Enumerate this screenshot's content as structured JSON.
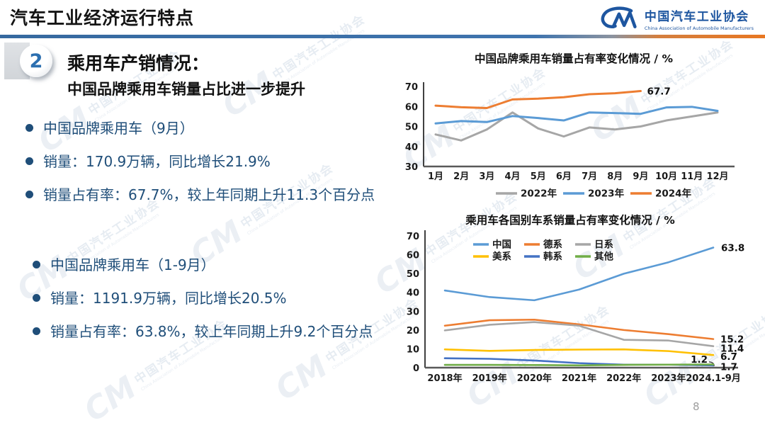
{
  "slide": {
    "title": "汽车工业经济运行特点",
    "page_number": "8"
  },
  "logo": {
    "mark": "CM",
    "name_cn": "中国汽车工业协会",
    "name_en": "China Association of Automobile Manufacturers"
  },
  "watermark": {
    "mark": "CM",
    "text": "中国汽车工业协会"
  },
  "section": {
    "number": "2",
    "heading": "乘用车产销情况：",
    "subheading": "中国品牌乘用车销量占比进一步提升"
  },
  "bullets": {
    "group1": [
      "中国品牌乘用车（9月）",
      "销量：170.9万辆，同比增长21.9%",
      "销量占有率：67.7%，较上年同期上升11.3个百分点"
    ],
    "group2": [
      "中国品牌乘用车（1-9月）",
      "销量：1191.9万辆，同比增长20.5%",
      "销量占有率：63.8%，较上年同期上升9.2个百分点"
    ]
  },
  "colors": {
    "accent_blue": "#3f74ae",
    "accent_orange": "#e87722",
    "text_navy": "#1f4e79",
    "logo_blue": "#1e56a0"
  },
  "chart_data": [
    {
      "type": "line",
      "title": "中国品牌乘用车销量占有率变化情况 / %",
      "categories": [
        "1月",
        "2月",
        "3月",
        "4月",
        "5月",
        "6月",
        "7月",
        "8月",
        "9月",
        "10月",
        "11月",
        "12月"
      ],
      "series": [
        {
          "name": "2022年",
          "color": "#a6a6a6",
          "values": [
            46,
            43,
            48.5,
            57,
            49,
            45,
            49.5,
            48.5,
            50,
            53,
            55,
            57
          ]
        },
        {
          "name": "2023年",
          "color": "#5b9bd5",
          "values": [
            51.5,
            52.7,
            52.2,
            55.2,
            54.2,
            53,
            57,
            56.7,
            56.3,
            59.5,
            59.8,
            57.8
          ]
        },
        {
          "name": "2024年",
          "color": "#ed7d31",
          "values": [
            60.4,
            59.6,
            59.2,
            63.5,
            63.9,
            64.6,
            66.1,
            66.6,
            67.7
          ],
          "end_label": "67.7"
        }
      ],
      "ylim": [
        30,
        70
      ],
      "yticks": [
        30,
        40,
        50,
        60,
        70
      ],
      "grid": "off",
      "legend_position": "bottom"
    },
    {
      "type": "line",
      "title": "乘用车各国别车系销量占有率变化情况 / %",
      "categories": [
        "2018年",
        "2019年",
        "2020年",
        "2021年",
        "2022年",
        "2023年",
        "2024.1-9月"
      ],
      "series": [
        {
          "name": "中国",
          "color": "#5b9bd5",
          "values": [
            41,
            37.5,
            35.8,
            41.5,
            49.9,
            56,
            63.8
          ],
          "end_label": "63.8"
        },
        {
          "name": "德系",
          "color": "#ed7d31",
          "values": [
            22.3,
            25.2,
            25.5,
            23,
            20,
            17.8,
            15.2
          ],
          "end_label": "15.2"
        },
        {
          "name": "日系",
          "color": "#a6a6a6",
          "values": [
            19.8,
            22.8,
            24.2,
            22.3,
            14.8,
            14.4,
            11.4
          ],
          "end_label": "11.4"
        },
        {
          "name": "美系",
          "color": "#ffc000",
          "values": [
            9.7,
            8.9,
            9.4,
            9.6,
            9.7,
            8.8,
            6.7
          ],
          "end_label": "6.7"
        },
        {
          "name": "韩系",
          "color": "#4472c4",
          "values": [
            5,
            4.7,
            3.8,
            2.4,
            1.6,
            1.6,
            1.2
          ],
          "end_label": "1.2"
        },
        {
          "name": "其他",
          "color": "#70ad47",
          "values": [
            1.5,
            1.5,
            1.4,
            1.2,
            1.5,
            1.6,
            1.7
          ],
          "end_label": "1.7"
        }
      ],
      "ylim": [
        0,
        70
      ],
      "yticks": [
        0,
        10,
        20,
        30,
        40,
        50,
        60,
        70
      ],
      "grid": "off",
      "legend_position": "top-inside"
    }
  ]
}
